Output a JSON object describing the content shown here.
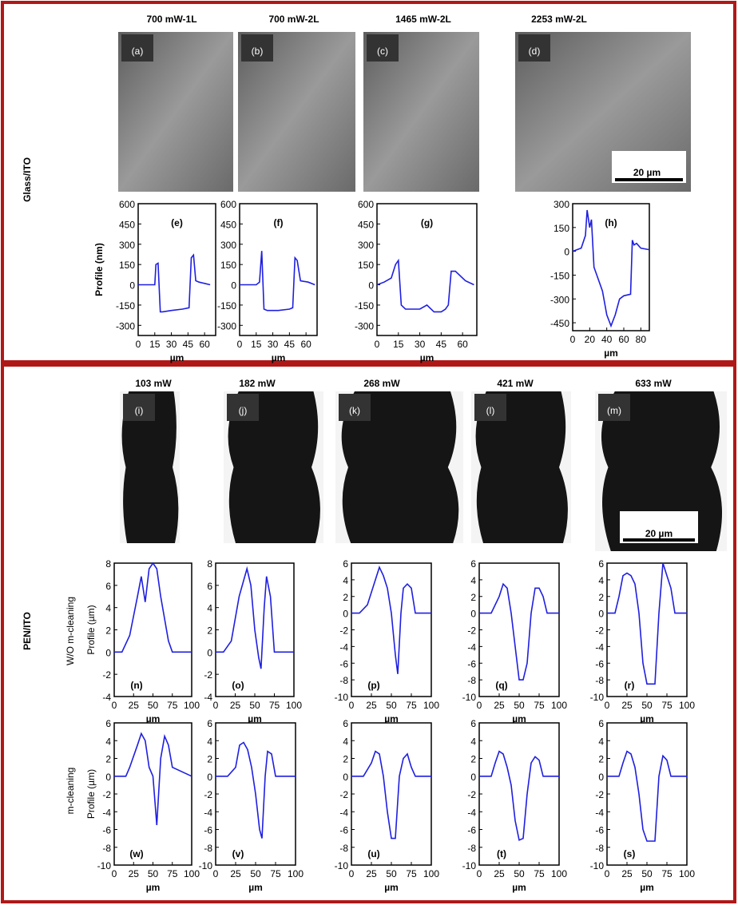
{
  "sections": [
    {
      "label": "Glass/ITO"
    },
    {
      "label": "PEN/ITO"
    }
  ],
  "images": [
    {
      "title": "700 mW-1L",
      "label": "(a)"
    },
    {
      "title": "700 mW-2L",
      "label": "(b)"
    },
    {
      "title": "1465 mW-2L",
      "label": "(c)"
    },
    {
      "title": "2253 mW-2L",
      "label": "(d)"
    },
    {
      "title": "103 mW",
      "label": "(i)"
    },
    {
      "title": "182 mW",
      "label": "(j)"
    },
    {
      "title": "268 mW",
      "label": "(k)"
    },
    {
      "title": "421 mW",
      "label": "(l)"
    },
    {
      "title": "633 mW",
      "label": "(m)"
    }
  ],
  "scale_bar": "20 µm",
  "row_labels": [
    "W/O m-cleaning",
    "m-cleaning"
  ],
  "chart_data": [
    {
      "type": "line",
      "label": "(e)",
      "x_label": "µm",
      "y_label": "Profile (nm)",
      "color": "#1f1fe0",
      "x": [
        0,
        15,
        16,
        18,
        20,
        22,
        30,
        40,
        46,
        48,
        50,
        52,
        55,
        60,
        65
      ],
      "values": [
        0,
        0,
        150,
        160,
        -200,
        -200,
        -190,
        -180,
        -170,
        200,
        220,
        30,
        20,
        10,
        0
      ],
      "xlim": [
        0,
        70
      ],
      "ylim": [
        -375,
        600
      ],
      "xticks": [
        0,
        15,
        30,
        45,
        60
      ],
      "yticks": [
        600,
        450,
        300,
        150,
        0,
        -150,
        -300
      ]
    },
    {
      "type": "line",
      "label": "(f)",
      "x_label": "µm",
      "color": "#1f1fe0",
      "x": [
        0,
        15,
        18,
        20,
        22,
        25,
        35,
        45,
        48,
        50,
        52,
        55,
        62,
        68
      ],
      "values": [
        0,
        0,
        20,
        250,
        -180,
        -190,
        -190,
        -180,
        -170,
        200,
        180,
        30,
        20,
        0
      ],
      "xlim": [
        0,
        70
      ],
      "ylim": [
        -375,
        600
      ],
      "xticks": [
        0,
        15,
        30,
        45,
        60
      ],
      "yticks": [
        600,
        450,
        300,
        150,
        0,
        -150,
        -300
      ]
    },
    {
      "type": "line",
      "label": "(g)",
      "x_label": "µm",
      "color": "#1f1fe0",
      "x": [
        0,
        5,
        10,
        13,
        15,
        17,
        20,
        30,
        35,
        40,
        45,
        48,
        50,
        52,
        55,
        62,
        68
      ],
      "values": [
        0,
        20,
        50,
        150,
        180,
        -150,
        -180,
        -180,
        -150,
        -200,
        -200,
        -180,
        -150,
        100,
        100,
        30,
        0
      ],
      "xlim": [
        0,
        70
      ],
      "ylim": [
        -375,
        600
      ],
      "xticks": [
        0,
        15,
        30,
        45,
        60
      ],
      "yticks": [
        600,
        450,
        300,
        150,
        0,
        -150,
        -300
      ]
    },
    {
      "type": "line",
      "label": "(h)",
      "x_label": "µm",
      "color": "#1f1fe0",
      "x": [
        0,
        10,
        15,
        17,
        20,
        22,
        25,
        35,
        40,
        45,
        50,
        55,
        60,
        68,
        70,
        72,
        75,
        80,
        90
      ],
      "values": [
        0,
        20,
        100,
        260,
        150,
        200,
        -100,
        -250,
        -400,
        -470,
        -400,
        -300,
        -280,
        -270,
        70,
        40,
        50,
        20,
        10
      ],
      "xlim": [
        0,
        90
      ],
      "ylim": [
        -500,
        300
      ],
      "xticks": [
        0,
        20,
        40,
        60,
        80
      ],
      "yticks": [
        300,
        150,
        0,
        -150,
        -300,
        -450
      ]
    },
    {
      "type": "line",
      "label": "(n)",
      "x_label": "µm",
      "y_label": "Profile (µm)",
      "color": "#1f1fe0",
      "x": [
        0,
        10,
        20,
        30,
        35,
        40,
        45,
        50,
        55,
        60,
        70,
        75,
        100
      ],
      "values": [
        0,
        0,
        1.5,
        5,
        6.8,
        4.5,
        7.5,
        8,
        7.5,
        5,
        1,
        0,
        0
      ],
      "xlim": [
        0,
        100
      ],
      "ylim": [
        -4,
        8
      ],
      "xticks": [
        0,
        25,
        50,
        75,
        100
      ],
      "yticks": [
        8,
        6,
        4,
        2,
        0,
        -2,
        -4
      ]
    },
    {
      "type": "line",
      "label": "(o)",
      "x_label": "µm",
      "color": "#1f1fe0",
      "x": [
        0,
        10,
        20,
        30,
        40,
        45,
        50,
        55,
        58,
        62,
        65,
        70,
        75,
        100
      ],
      "values": [
        0,
        0,
        1,
        5,
        7.5,
        6,
        2,
        -0.5,
        -1.5,
        4,
        6.8,
        5,
        0,
        0
      ],
      "xlim": [
        0,
        100
      ],
      "ylim": [
        -4,
        8
      ],
      "xticks": [
        0,
        25,
        50,
        75,
        100
      ],
      "yticks": [
        8,
        6,
        4,
        2,
        0,
        -2,
        -4
      ]
    },
    {
      "type": "line",
      "label": "(p)",
      "x_label": "µm",
      "color": "#1f1fe0",
      "x": [
        0,
        10,
        20,
        30,
        35,
        40,
        45,
        50,
        55,
        58,
        62,
        65,
        70,
        75,
        80,
        100
      ],
      "values": [
        0,
        0,
        1,
        4,
        5.5,
        4.5,
        3,
        0,
        -5,
        -7.3,
        0,
        3,
        3.5,
        3,
        0,
        0
      ],
      "xlim": [
        0,
        100
      ],
      "ylim": [
        -10,
        6
      ],
      "xticks": [
        0,
        25,
        50,
        75,
        100
      ],
      "yticks": [
        6,
        4,
        2,
        0,
        -2,
        -4,
        -6,
        -8,
        -10
      ]
    },
    {
      "type": "line",
      "label": "(q)",
      "x_label": "µm",
      "color": "#1f1fe0",
      "x": [
        0,
        15,
        25,
        30,
        35,
        40,
        45,
        50,
        55,
        60,
        65,
        70,
        75,
        80,
        85,
        100
      ],
      "values": [
        0,
        0,
        2,
        3.5,
        3,
        0,
        -4,
        -8,
        -8,
        -6,
        0,
        3,
        3,
        2,
        0,
        0
      ],
      "xlim": [
        0,
        100
      ],
      "ylim": [
        -10,
        6
      ],
      "xticks": [
        0,
        25,
        50,
        75,
        100
      ],
      "yticks": [
        6,
        4,
        2,
        0,
        -2,
        -4,
        -6,
        -8,
        -10
      ]
    },
    {
      "type": "line",
      "label": "(r)",
      "x_label": "µm",
      "color": "#1f1fe0",
      "x": [
        0,
        10,
        15,
        20,
        25,
        30,
        35,
        40,
        45,
        50,
        55,
        60,
        65,
        70,
        75,
        80,
        85,
        100
      ],
      "values": [
        0,
        0,
        2,
        4.5,
        4.8,
        4.5,
        3.5,
        0,
        -6,
        -8.5,
        -8.5,
        -8.5,
        0,
        6,
        4.5,
        3,
        0,
        0
      ],
      "xlim": [
        0,
        100
      ],
      "ylim": [
        -10,
        6
      ],
      "xticks": [
        0,
        25,
        50,
        75,
        100
      ],
      "yticks": [
        6,
        4,
        2,
        0,
        -2,
        -4,
        -6,
        -8,
        -10
      ]
    },
    {
      "type": "line",
      "label": "(w)",
      "x_label": "µm",
      "y_label": "Profile (µm)",
      "color": "#1f1fe0",
      "x": [
        0,
        15,
        20,
        30,
        35,
        40,
        45,
        50,
        55,
        60,
        65,
        70,
        75,
        100
      ],
      "values": [
        0,
        0,
        1,
        3.5,
        4.8,
        4,
        1,
        0,
        -5.5,
        2,
        4.5,
        3.5,
        1,
        0
      ],
      "xlim": [
        0,
        100
      ],
      "ylim": [
        -10,
        6
      ],
      "xticks": [
        0,
        25,
        50,
        75,
        100
      ],
      "yticks": [
        6,
        4,
        2,
        0,
        -2,
        -4,
        -6,
        -8,
        -10
      ]
    },
    {
      "type": "line",
      "label": "(v)",
      "x_label": "µm",
      "color": "#1f1fe0",
      "x": [
        0,
        15,
        25,
        30,
        35,
        40,
        45,
        50,
        55,
        58,
        62,
        65,
        70,
        75,
        100
      ],
      "values": [
        0,
        0,
        1,
        3.5,
        3.8,
        3,
        1,
        -2,
        -6,
        -7,
        0,
        2.8,
        2.5,
        0,
        0
      ],
      "xlim": [
        0,
        100
      ],
      "ylim": [
        -10,
        6
      ],
      "xticks": [
        0,
        25,
        50,
        75,
        100
      ],
      "yticks": [
        6,
        4,
        2,
        0,
        -2,
        -4,
        -6,
        -8,
        -10
      ]
    },
    {
      "type": "line",
      "label": "(u)",
      "x_label": "µm",
      "color": "#1f1fe0",
      "x": [
        0,
        15,
        25,
        30,
        35,
        40,
        45,
        50,
        55,
        60,
        65,
        70,
        75,
        80,
        100
      ],
      "values": [
        0,
        0,
        1.5,
        2.8,
        2.5,
        0,
        -4,
        -7,
        -7,
        0,
        2,
        2.5,
        1,
        0,
        0
      ],
      "xlim": [
        0,
        100
      ],
      "ylim": [
        -10,
        6
      ],
      "xticks": [
        0,
        25,
        50,
        75,
        100
      ],
      "yticks": [
        6,
        4,
        2,
        0,
        -2,
        -4,
        -6,
        -8,
        -10
      ]
    },
    {
      "type": "line",
      "label": "(t)",
      "x_label": "µm",
      "color": "#1f1fe0",
      "x": [
        0,
        15,
        20,
        25,
        30,
        35,
        40,
        45,
        50,
        55,
        60,
        65,
        70,
        75,
        80,
        100
      ],
      "values": [
        0,
        0,
        1.5,
        2.8,
        2.5,
        1,
        -1,
        -5,
        -7.2,
        -7,
        -2,
        1.5,
        2.2,
        1.8,
        0,
        0
      ],
      "xlim": [
        0,
        100
      ],
      "ylim": [
        -10,
        6
      ],
      "xticks": [
        0,
        25,
        50,
        75,
        100
      ],
      "yticks": [
        6,
        4,
        2,
        0,
        -2,
        -4,
        -6,
        -8,
        -10
      ]
    },
    {
      "type": "line",
      "label": "(s)",
      "x_label": "µm",
      "color": "#1f1fe0",
      "x": [
        0,
        15,
        20,
        25,
        30,
        35,
        40,
        45,
        50,
        55,
        60,
        65,
        70,
        75,
        80,
        100
      ],
      "values": [
        0,
        0,
        1.5,
        2.8,
        2.5,
        1,
        -2,
        -6,
        -7.3,
        -7.3,
        -7.3,
        0,
        2.3,
        1.8,
        0,
        0
      ],
      "xlim": [
        0,
        100
      ],
      "ylim": [
        -10,
        6
      ],
      "xticks": [
        0,
        25,
        50,
        75,
        100
      ],
      "yticks": [
        6,
        4,
        2,
        0,
        -2,
        -4,
        -6,
        -8,
        -10
      ]
    }
  ]
}
